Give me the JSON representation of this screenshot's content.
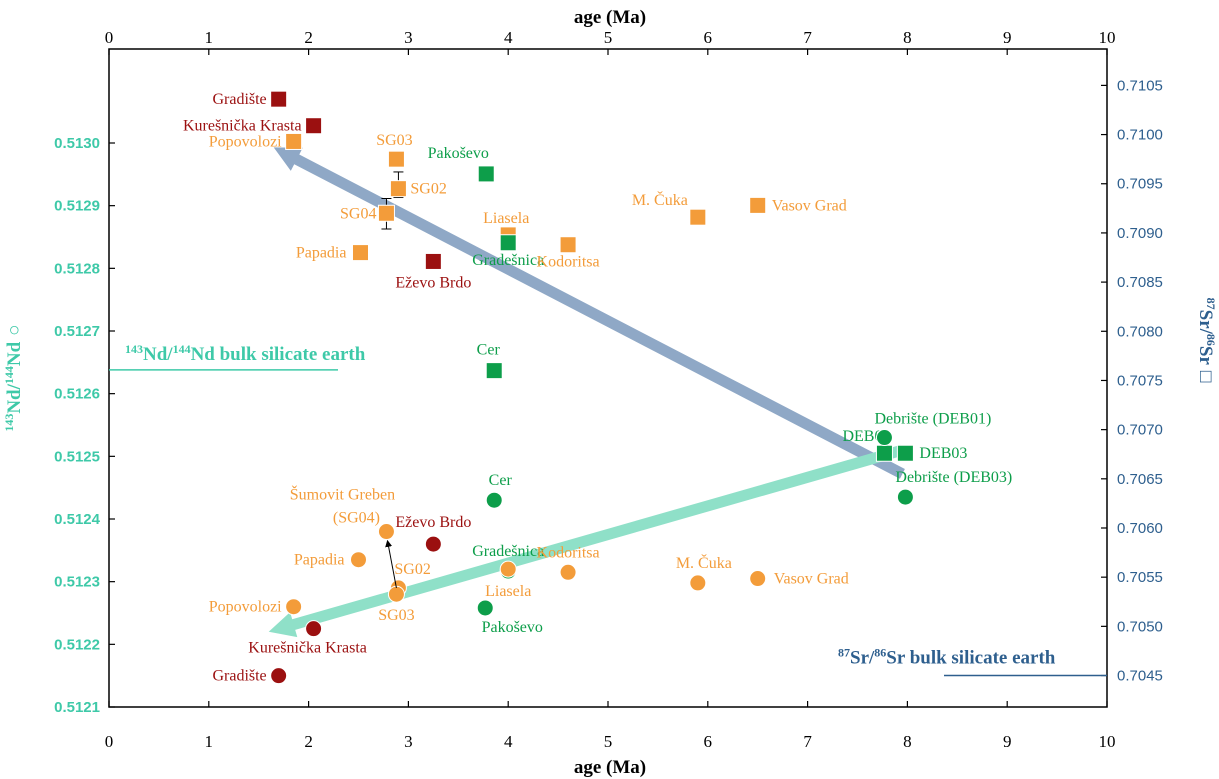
{
  "chart_data": {
    "type": "scatter",
    "title": "",
    "xlabel_top": "age (Ma)",
    "xlabel_bottom": "age (Ma)",
    "ylabel_left": "143Nd/144Nd",
    "ylabel_right": "87Sr/86Sr",
    "xlim": [
      0,
      10
    ],
    "x_ticks": [
      "0",
      "1",
      "2",
      "3",
      "4",
      "5",
      "6",
      "7",
      "8",
      "9",
      "10"
    ],
    "nd_axis": {
      "range": [
        0.5121,
        0.51315
      ],
      "ticks": [
        "0.5121",
        "0.5122",
        "0.5123",
        "0.5124",
        "0.5125",
        "0.5126",
        "0.5127",
        "0.5128",
        "0.5129",
        "0.5130"
      ]
    },
    "sr_axis": {
      "range": [
        0.70418,
        0.71087
      ],
      "ticks": [
        "0.7045",
        "0.7050",
        "0.7055",
        "0.7060",
        "0.7065",
        "0.7070",
        "0.7075",
        "0.7080",
        "0.7085",
        "0.7090",
        "0.7095",
        "0.7100",
        "0.7105"
      ]
    },
    "colors": {
      "dark_red": "#9b1010",
      "orange": "#f39c3a",
      "green": "#0d9e4a",
      "nd_axis": "#3ec9a8",
      "sr_axis": "#2e5f8e",
      "sr_trend": "#8fa8c6",
      "nd_trend": "#8fe0c8"
    },
    "sr_series": [
      {
        "label": "Gradište",
        "x": 1.7,
        "y": 0.71036,
        "color": "#9b1010",
        "anchor": "end",
        "dx": -12,
        "dy": 5
      },
      {
        "label": "Kurešnička Krasta",
        "x": 2.05,
        "y": 0.71009,
        "color": "#9b1010",
        "anchor": "end",
        "dx": -12,
        "dy": 5
      },
      {
        "label": "Popovolozi",
        "x": 1.85,
        "y": 0.70993,
        "color": "#f39c3a",
        "anchor": "end",
        "dx": -12,
        "dy": 5
      },
      {
        "label": "SG03",
        "x": 2.88,
        "y": 0.70975,
        "color": "#f39c3a",
        "anchor": "middle",
        "dx": -2,
        "dy": -14
      },
      {
        "label": "SG02",
        "x": 2.9,
        "y": 0.70945,
        "color": "#f39c3a",
        "anchor": "start",
        "dx": 12,
        "dy": 5
      },
      {
        "label": "SG04",
        "x": 2.78,
        "y": 0.7092,
        "color": "#f39c3a",
        "anchor": "end",
        "dx": -10,
        "dy": 5
      },
      {
        "label": "Pakoševo",
        "x": 3.78,
        "y": 0.7096,
        "color": "#0d9e4a",
        "anchor": "middle",
        "dx": -28,
        "dy": -16
      },
      {
        "label": "Liasela",
        "x": 4.0,
        "y": 0.70898,
        "color": "#f39c3a",
        "anchor": "middle",
        "dx": -2,
        "dy": -12
      },
      {
        "label": "Gradešnica",
        "x": 4.0,
        "y": 0.7089,
        "color": "#0d9e4a",
        "anchor": "middle",
        "dx": 0,
        "dy": 22
      },
      {
        "label": "Kodoritsa",
        "x": 4.6,
        "y": 0.70888,
        "color": "#f39c3a",
        "anchor": "middle",
        "dx": 0,
        "dy": 22
      },
      {
        "label": "M. Čuka",
        "x": 5.9,
        "y": 0.70916,
        "color": "#f39c3a",
        "anchor": "end",
        "dx": -10,
        "dy": -12
      },
      {
        "label": "Vasov Grad",
        "x": 6.5,
        "y": 0.70928,
        "color": "#f39c3a",
        "anchor": "start",
        "dx": 14,
        "dy": 5
      },
      {
        "label": "Papadia",
        "x": 2.52,
        "y": 0.7088,
        "color": "#f39c3a",
        "anchor": "end",
        "dx": -14,
        "dy": 5
      },
      {
        "label": "Eževo Brdo",
        "x": 3.25,
        "y": 0.70871,
        "color": "#9b1010",
        "anchor": "middle",
        "dx": 0,
        "dy": 26
      },
      {
        "label": "Cer",
        "x": 3.86,
        "y": 0.7076,
        "color": "#0d9e4a",
        "anchor": "middle",
        "dx": -6,
        "dy": -16
      },
      {
        "label": "DEB01",
        "x": 7.77,
        "y": 0.70676,
        "color": "#0d9e4a",
        "anchor": "middle",
        "dx": -18,
        "dy": -12
      },
      {
        "label": "DEB03",
        "x": 7.98,
        "y": 0.70676,
        "color": "#0d9e4a",
        "anchor": "start",
        "dx": 14,
        "dy": 5
      }
    ],
    "nd_series": [
      {
        "label": "Debrište (DEB01)",
        "x": 7.77,
        "y": 0.51253,
        "color": "#0d9e4a",
        "anchor": "start",
        "dx": -10,
        "dy": -14
      },
      {
        "label": "Debrište (DEB03)",
        "x": 7.98,
        "y": 0.512435,
        "color": "#0d9e4a",
        "anchor": "start",
        "dx": -10,
        "dy": -15
      },
      {
        "label": "Cer",
        "x": 3.86,
        "y": 0.51243,
        "color": "#0d9e4a",
        "anchor": "middle",
        "dx": 6,
        "dy": -15
      },
      {
        "label": "Eževo Brdo",
        "x": 3.25,
        "y": 0.51236,
        "color": "#9b1010",
        "anchor": "middle",
        "dx": 0,
        "dy": -17
      },
      {
        "label": "Papadia",
        "x": 2.5,
        "y": 0.512335,
        "color": "#f39c3a",
        "anchor": "end",
        "dx": -14,
        "dy": 5
      },
      {
        "label": "Gradešnica",
        "x": 4.0,
        "y": 0.512317,
        "color": "#0d9e4a",
        "anchor": "middle",
        "dx": 0,
        "dy": -15
      },
      {
        "label": "Kodoritsa",
        "x": 4.6,
        "y": 0.512315,
        "color": "#f39c3a",
        "anchor": "middle",
        "dx": 0,
        "dy": -15
      },
      {
        "label": "M. Čuka",
        "x": 5.9,
        "y": 0.512298,
        "color": "#f39c3a",
        "anchor": "middle",
        "dx": 6,
        "dy": -15
      },
      {
        "label": "Vasov Grad",
        "x": 6.5,
        "y": 0.512305,
        "color": "#f39c3a",
        "anchor": "start",
        "dx": 16,
        "dy": 5
      },
      {
        "label": "SG02",
        "x": 2.9,
        "y": 0.51229,
        "color": "#f39c3a",
        "anchor": "start",
        "dx": -4,
        "dy": -14
      },
      {
        "label": "SG03",
        "x": 2.88,
        "y": 0.51228,
        "color": "#f39c3a",
        "anchor": "middle",
        "dx": 0,
        "dy": 26
      },
      {
        "label": "Liasela",
        "x": 4.0,
        "y": 0.51232,
        "color": "#f39c3a",
        "anchor": "middle",
        "dx": 0,
        "dy": 27
      },
      {
        "label": "Popovolozi",
        "x": 1.85,
        "y": 0.51226,
        "color": "#f39c3a",
        "anchor": "end",
        "dx": -12,
        "dy": 5
      },
      {
        "label": "Pakoševo",
        "x": 3.77,
        "y": 0.512258,
        "color": "#0d9e4a",
        "anchor": "middle",
        "dx": 27,
        "dy": 24
      },
      {
        "label": "Kurešnička Krasta",
        "x": 2.05,
        "y": 0.512225,
        "color": "#9b1010",
        "anchor": "middle",
        "dx": -6,
        "dy": 24
      },
      {
        "label": "Gradište",
        "x": 1.7,
        "y": 0.51215,
        "color": "#9b1010",
        "anchor": "end",
        "dx": -12,
        "dy": 5
      }
    ],
    "sg04_nd": {
      "label_line1": "Šumovit Greben",
      "label_line2": "(SG04)",
      "x": 2.78,
      "y": 0.51238,
      "color": "#f39c3a"
    },
    "nd_bse": {
      "label": "143Nd/144Nd bulk silicate earth",
      "y": 0.512638
    },
    "sr_bse": {
      "label": "87Sr/86Sr bulk silicate earth",
      "y": 0.7045
    },
    "trends": [
      {
        "axis": "sr",
        "from": [
          7.95,
          0.70655
        ],
        "to": [
          1.65,
          0.70987
        ]
      },
      {
        "axis": "nd",
        "from": [
          7.95,
          0.51251
        ],
        "to": [
          1.6,
          0.51222
        ]
      }
    ],
    "errorbars": [
      {
        "axis": "sr",
        "x": 2.9,
        "low": 0.70936,
        "high": 0.70962
      },
      {
        "axis": "sr",
        "x": 2.78,
        "low": 0.70904,
        "high": 0.70935
      }
    ]
  }
}
